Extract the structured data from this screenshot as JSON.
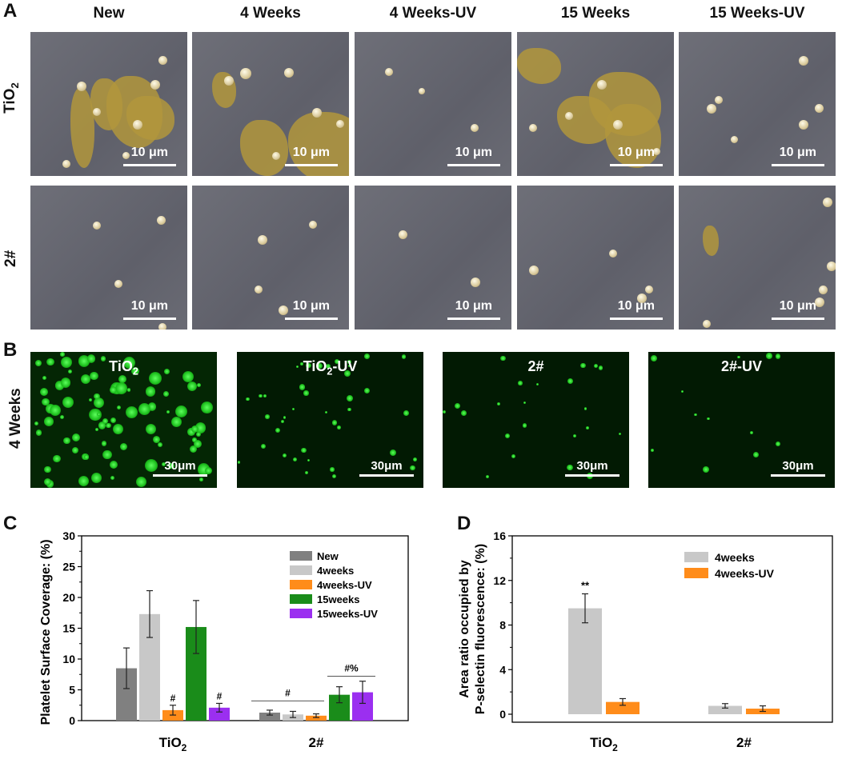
{
  "panelA": {
    "letter": "A",
    "columns": [
      "New",
      "4 Weeks",
      "4 Weeks-UV",
      "15 Weeks",
      "15 Weeks-UV"
    ],
    "rows": [
      {
        "label_main": "TiO",
        "label_sub": "2"
      },
      {
        "label_main": "2#",
        "label_sub": ""
      }
    ],
    "scale_label": "10 μm"
  },
  "panelB": {
    "letter": "B",
    "row_label": "4 Weeks",
    "images": [
      {
        "title_main": "TiO",
        "title_sub": "2",
        "title_suffix": ""
      },
      {
        "title_main": "TiO",
        "title_sub": "2",
        "title_suffix": "-UV"
      },
      {
        "title_main": "2#",
        "title_sub": "",
        "title_suffix": ""
      },
      {
        "title_main": "2#-UV",
        "title_sub": "",
        "title_suffix": ""
      }
    ],
    "scale_label": "30μm"
  },
  "chart_data": [
    {
      "type": "bar",
      "letter": "C",
      "ylabel": "Platelet Surface Coverage: (%)",
      "ylim": [
        0,
        30
      ],
      "yticks": [
        "0",
        "5",
        "10",
        "15",
        "20",
        "25",
        "30"
      ],
      "categories": [
        {
          "main": "TiO",
          "sub": "2"
        },
        {
          "main": "2#",
          "sub": ""
        }
      ],
      "series": [
        {
          "name": "New",
          "color": "#808080",
          "values": [
            8.5,
            1.3
          ],
          "errors": [
            3.3,
            0.4
          ]
        },
        {
          "name": "4weeks",
          "color": "#c8c8c8",
          "values": [
            17.3,
            1.0
          ],
          "errors": [
            3.8,
            0.5
          ]
        },
        {
          "name": "4weeks-UV",
          "color": "#ff8c1a",
          "values": [
            1.7,
            0.8
          ],
          "errors": [
            0.8,
            0.3
          ]
        },
        {
          "name": "15weeks",
          "color": "#1a8c1a",
          "values": [
            15.2,
            4.2
          ],
          "errors": [
            4.3,
            1.3
          ]
        },
        {
          "name": "15weeks-UV",
          "color": "#9b2ff0",
          "values": [
            2.1,
            4.6
          ],
          "errors": [
            0.7,
            1.8
          ]
        }
      ],
      "annotations": [
        "#",
        "#",
        "#",
        "#%"
      ],
      "legend": "top-right"
    },
    {
      "type": "bar",
      "letter": "D",
      "ylabel_line1": "Area ratio occupied by",
      "ylabel_line2": "P-selectin fluorescence: (%)",
      "ylim": [
        0,
        16
      ],
      "yticks": [
        "0",
        "4",
        "8",
        "12",
        "16"
      ],
      "categories": [
        {
          "main": "TiO",
          "sub": "2"
        },
        {
          "main": "2#",
          "sub": ""
        }
      ],
      "series": [
        {
          "name": "4weeks",
          "color": "#c8c8c8",
          "values": [
            9.5,
            0.75
          ],
          "errors": [
            1.3,
            0.2
          ]
        },
        {
          "name": "4weeks-UV",
          "color": "#ff8c1a",
          "values": [
            1.1,
            0.5
          ],
          "errors": [
            0.3,
            0.25
          ]
        }
      ],
      "annotations": [
        "**"
      ],
      "legend": "top-right"
    }
  ]
}
